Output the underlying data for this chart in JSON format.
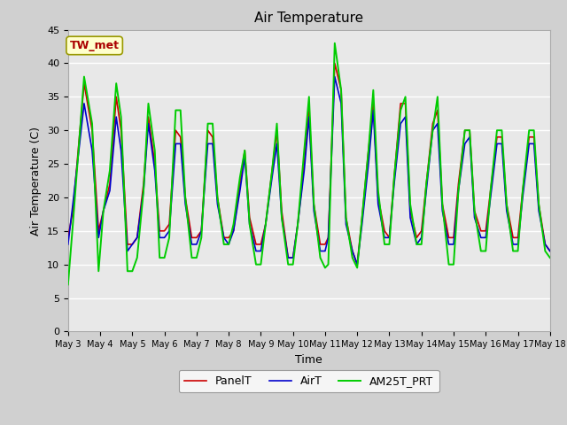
{
  "title": "Air Temperature",
  "xlabel": "Time",
  "ylabel": "Air Temperature (C)",
  "ylim": [
    0,
    45
  ],
  "yticks": [
    0,
    5,
    10,
    15,
    20,
    25,
    30,
    35,
    40,
    45
  ],
  "annotation_label": "TW_met",
  "fig_bg_color": "#d0d0d0",
  "plot_bg_color": "#e8e8e8",
  "line_colors": {
    "PanelT": "#cc0000",
    "AirT": "#0000cc",
    "AM25T_PRT": "#00cc00"
  },
  "line_widths": {
    "PanelT": 1.2,
    "AirT": 1.2,
    "AM25T_PRT": 1.4
  },
  "x_labels": [
    "May 3",
    "May 4",
    "May 5",
    "May 6",
    "May 7",
    "May 8",
    "May 9",
    "May 10",
    "May 11",
    "May 12",
    "May 13",
    "May 14",
    "May 15",
    "May 16",
    "May 17",
    "May 18"
  ],
  "x_positions": [
    3,
    4,
    5,
    6,
    7,
    8,
    9,
    10,
    11,
    12,
    13,
    14,
    15,
    16,
    17,
    18
  ],
  "PanelT_x": [
    3.0,
    3.15,
    3.5,
    3.75,
    3.95,
    4.1,
    4.3,
    4.5,
    4.65,
    4.85,
    5.0,
    5.15,
    5.35,
    5.5,
    5.7,
    5.85,
    6.0,
    6.15,
    6.35,
    6.5,
    6.65,
    6.85,
    7.0,
    7.15,
    7.35,
    7.5,
    7.65,
    7.85,
    8.0,
    8.15,
    8.35,
    8.5,
    8.65,
    8.85,
    9.0,
    9.15,
    9.35,
    9.5,
    9.65,
    9.85,
    10.0,
    10.15,
    10.35,
    10.5,
    10.65,
    10.85,
    11.0,
    11.1,
    11.3,
    11.5,
    11.65,
    11.85,
    12.0,
    12.15,
    12.35,
    12.5,
    12.65,
    12.85,
    13.0,
    13.15,
    13.35,
    13.5,
    13.65,
    13.85,
    14.0,
    14.15,
    14.35,
    14.5,
    14.65,
    14.85,
    15.0,
    15.15,
    15.35,
    15.5,
    15.65,
    15.85,
    16.0,
    16.15,
    16.35,
    16.5,
    16.65,
    16.85,
    17.0,
    17.15,
    17.35,
    17.5,
    17.65,
    17.85,
    18.0
  ],
  "PanelT_y": [
    14,
    18,
    37,
    30,
    15,
    18,
    22,
    35,
    30,
    13,
    13,
    14,
    22,
    32,
    25,
    15,
    15,
    16,
    30,
    29,
    20,
    14,
    14,
    15,
    30,
    29,
    20,
    14,
    14,
    15,
    22,
    27,
    17,
    13,
    13,
    16,
    24,
    30,
    18,
    11,
    11,
    16,
    25,
    33,
    19,
    13,
    13,
    14,
    40,
    36,
    17,
    12,
    10,
    17,
    27,
    34,
    20,
    15,
    14,
    23,
    34,
    34,
    18,
    14,
    15,
    22,
    31,
    33,
    19,
    14,
    14,
    22,
    30,
    30,
    18,
    15,
    15,
    21,
    29,
    29,
    19,
    14,
    14,
    21,
    29,
    29,
    19,
    13,
    12
  ],
  "AirT_x": [
    3.0,
    3.15,
    3.5,
    3.75,
    3.95,
    4.1,
    4.3,
    4.5,
    4.65,
    4.85,
    5.0,
    5.15,
    5.35,
    5.5,
    5.7,
    5.85,
    6.0,
    6.15,
    6.35,
    6.5,
    6.65,
    6.85,
    7.0,
    7.15,
    7.35,
    7.5,
    7.65,
    7.85,
    8.0,
    8.15,
    8.35,
    8.5,
    8.65,
    8.85,
    9.0,
    9.15,
    9.35,
    9.5,
    9.65,
    9.85,
    10.0,
    10.15,
    10.35,
    10.5,
    10.65,
    10.85,
    11.0,
    11.1,
    11.3,
    11.5,
    11.65,
    11.85,
    12.0,
    12.15,
    12.35,
    12.5,
    12.65,
    12.85,
    13.0,
    13.15,
    13.35,
    13.5,
    13.65,
    13.85,
    14.0,
    14.15,
    14.35,
    14.5,
    14.65,
    14.85,
    15.0,
    15.15,
    15.35,
    15.5,
    15.65,
    15.85,
    16.0,
    16.15,
    16.35,
    16.5,
    16.65,
    16.85,
    17.0,
    17.15,
    17.35,
    17.5,
    17.65,
    17.85,
    18.0
  ],
  "AirT_y": [
    13,
    19,
    34,
    27,
    14,
    18,
    21,
    32,
    27,
    12,
    13,
    14,
    21,
    31,
    24,
    14,
    14,
    15,
    28,
    28,
    19,
    13,
    13,
    15,
    28,
    28,
    19,
    14,
    13,
    15,
    21,
    26,
    16,
    12,
    12,
    16,
    23,
    28,
    17,
    11,
    11,
    16,
    24,
    32,
    18,
    12,
    12,
    14,
    38,
    34,
    16,
    12,
    10,
    16,
    25,
    33,
    19,
    14,
    14,
    22,
    31,
    32,
    17,
    13,
    14,
    21,
    30,
    31,
    18,
    13,
    13,
    21,
    28,
    29,
    17,
    14,
    14,
    20,
    28,
    28,
    18,
    13,
    13,
    20,
    28,
    28,
    18,
    13,
    12
  ],
  "AM25T_PRT_x": [
    3.0,
    3.15,
    3.5,
    3.75,
    3.95,
    4.1,
    4.3,
    4.5,
    4.65,
    4.85,
    5.0,
    5.15,
    5.35,
    5.5,
    5.7,
    5.85,
    6.0,
    6.15,
    6.35,
    6.5,
    6.65,
    6.85,
    7.0,
    7.15,
    7.35,
    7.5,
    7.65,
    7.85,
    8.0,
    8.15,
    8.35,
    8.5,
    8.65,
    8.85,
    9.0,
    9.15,
    9.35,
    9.5,
    9.65,
    9.85,
    10.0,
    10.15,
    10.35,
    10.5,
    10.65,
    10.85,
    11.0,
    11.1,
    11.3,
    11.5,
    11.65,
    11.85,
    12.0,
    12.15,
    12.35,
    12.5,
    12.65,
    12.85,
    13.0,
    13.15,
    13.35,
    13.5,
    13.65,
    13.85,
    14.0,
    14.15,
    14.35,
    14.5,
    14.65,
    14.85,
    15.0,
    15.15,
    15.35,
    15.5,
    15.65,
    15.85,
    16.0,
    16.15,
    16.35,
    16.5,
    16.65,
    16.85,
    17.0,
    17.15,
    17.35,
    17.5,
    17.65,
    17.85,
    18.0
  ],
  "AM25T_PRT_y": [
    7,
    16,
    38,
    31,
    9,
    18,
    24,
    37,
    32,
    9,
    9,
    11,
    21,
    34,
    27,
    11,
    11,
    14,
    33,
    33,
    20,
    11,
    11,
    14,
    31,
    31,
    20,
    13,
    13,
    16,
    23,
    27,
    16,
    10,
    10,
    16,
    24,
    31,
    17,
    10,
    10,
    16,
    27,
    35,
    19,
    11,
    9.5,
    10,
    43,
    36,
    17,
    11,
    9.5,
    17,
    27,
    36,
    21,
    13,
    13,
    23,
    33,
    35,
    19,
    13,
    13,
    22,
    30,
    35,
    19,
    10,
    10,
    21,
    30,
    30,
    18,
    12,
    12,
    21,
    30,
    30,
    19,
    12,
    12,
    21,
    30,
    30,
    19,
    12,
    11
  ]
}
